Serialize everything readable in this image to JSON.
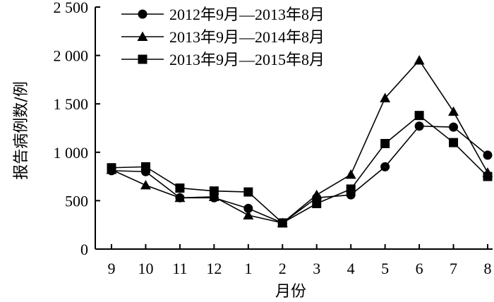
{
  "chart_data": {
    "type": "line",
    "title": "",
    "xlabel": "月份",
    "ylabel": "报告病例数/例",
    "categories": [
      "9",
      "10",
      "11",
      "12",
      "1",
      "2",
      "3",
      "4",
      "5",
      "6",
      "7",
      "8"
    ],
    "y_ticks": [
      0,
      500,
      1000,
      1500,
      2000,
      2500
    ],
    "y_tick_labels": [
      "0",
      "500",
      "1 000",
      "1 500",
      "2 000",
      "2 500"
    ],
    "ylim": [
      0,
      2500
    ],
    "grid": false,
    "legend_position": "top-left",
    "series": [
      {
        "name": "2012年9月—2013年8月",
        "marker": "circle",
        "values": [
          810,
          800,
          530,
          530,
          420,
          270,
          530,
          560,
          850,
          1270,
          1260,
          970
        ]
      },
      {
        "name": "2013年9月—2014年8月",
        "marker": "triangle",
        "values": [
          820,
          660,
          530,
          540,
          350,
          270,
          560,
          770,
          1560,
          1950,
          1420,
          790
        ]
      },
      {
        "name": "2013年9月—2015年8月",
        "marker": "square",
        "values": [
          840,
          850,
          630,
          600,
          590,
          270,
          470,
          620,
          1090,
          1380,
          1100,
          750
        ]
      }
    ]
  }
}
